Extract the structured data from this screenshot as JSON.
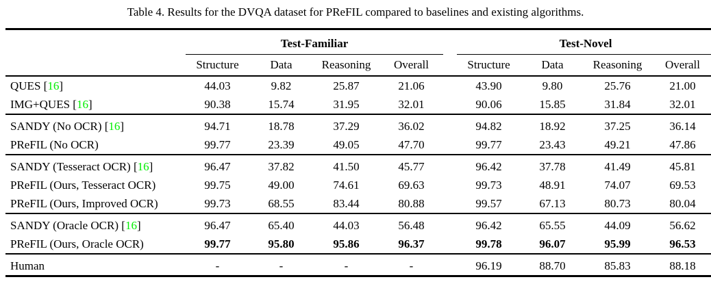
{
  "title": "Table 4. Results for the DVQA dataset for PReFIL compared to baselines and existing algorithms.",
  "table": {
    "group_headers": [
      "Test-Familiar",
      "Test-Novel"
    ],
    "sub_headers": [
      "Structure",
      "Data",
      "Reasoning",
      "Overall"
    ],
    "rows": [
      {
        "label": "QUES",
        "cite": "16",
        "group_start": false,
        "bold_values": false,
        "familiar": [
          "44.03",
          "9.82",
          "25.87",
          "21.06"
        ],
        "novel": [
          "43.90",
          "9.80",
          "25.76",
          "21.00"
        ]
      },
      {
        "label": "IMG+QUES",
        "cite": "16",
        "group_start": false,
        "bold_values": false,
        "familiar": [
          "90.38",
          "15.74",
          "31.95",
          "32.01"
        ],
        "novel": [
          "90.06",
          "15.85",
          "31.84",
          "32.01"
        ]
      },
      {
        "label": "SANDY (No OCR)",
        "cite": "16",
        "group_start": true,
        "bold_values": false,
        "familiar": [
          "94.71",
          "18.78",
          "37.29",
          "36.02"
        ],
        "novel": [
          "94.82",
          "18.92",
          "37.25",
          "36.14"
        ]
      },
      {
        "label": "PReFIL (No OCR)",
        "cite": null,
        "group_start": false,
        "bold_values": false,
        "familiar": [
          "99.77",
          "23.39",
          "49.05",
          "47.70"
        ],
        "novel": [
          "99.77",
          "23.43",
          "49.21",
          "47.86"
        ]
      },
      {
        "label": "SANDY (Tesseract OCR)",
        "cite": "16",
        "group_start": true,
        "bold_values": false,
        "familiar": [
          "96.47",
          "37.82",
          "41.50",
          "45.77"
        ],
        "novel": [
          "96.42",
          "37.78",
          "41.49",
          "45.81"
        ]
      },
      {
        "label": "PReFIL (Ours, Tesseract OCR)",
        "cite": null,
        "group_start": false,
        "bold_values": false,
        "familiar": [
          "99.75",
          "49.00",
          "74.61",
          "69.63"
        ],
        "novel": [
          "99.73",
          "48.91",
          "74.07",
          "69.53"
        ]
      },
      {
        "label": "PReFIL (Ours, Improved OCR)",
        "cite": null,
        "group_start": false,
        "bold_values": false,
        "familiar": [
          "99.73",
          "68.55",
          "83.44",
          "80.88"
        ],
        "novel": [
          "99.57",
          "67.13",
          "80.73",
          "80.04"
        ]
      },
      {
        "label": "SANDY (Oracle OCR)",
        "cite": "16",
        "group_start": true,
        "bold_values": false,
        "familiar": [
          "96.47",
          "65.40",
          "44.03",
          "56.48"
        ],
        "novel": [
          "96.42",
          "65.55",
          "44.09",
          "56.62"
        ]
      },
      {
        "label": "PReFIL (Ours, Oracle OCR)",
        "cite": null,
        "group_start": false,
        "bold_values": true,
        "familiar": [
          "99.77",
          "95.80",
          "95.86",
          "96.37"
        ],
        "novel": [
          "99.78",
          "96.07",
          "95.99",
          "96.53"
        ]
      },
      {
        "label": "Human",
        "cite": null,
        "group_start": true,
        "bold_values": false,
        "familiar": [
          "-",
          "-",
          "-",
          "-"
        ],
        "novel": [
          "96.19",
          "88.70",
          "85.83",
          "88.18"
        ]
      }
    ]
  },
  "colors": {
    "citation_green": "#00ee00",
    "text": "#000000"
  }
}
